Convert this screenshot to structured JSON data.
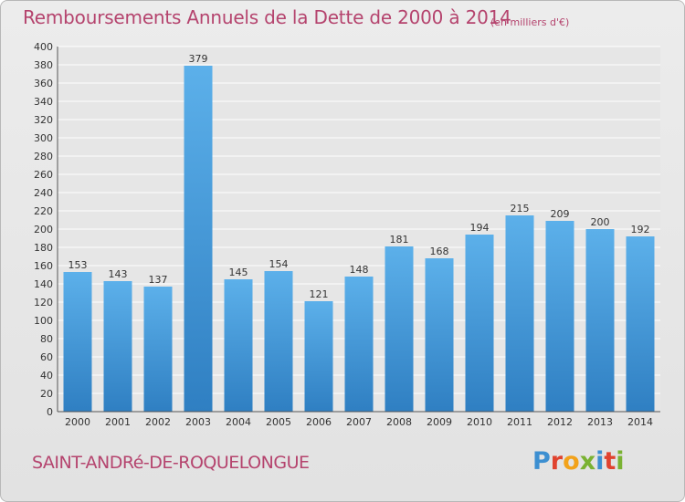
{
  "header": {
    "title": "Remboursements Annuels de la Dette de 2000 à 2014",
    "unit": "(en milliers d'€)"
  },
  "footer": {
    "town": "SAINT-ANDRé-DE-ROQUELONGUE",
    "logo_letters": [
      "P",
      "r",
      "o",
      "x",
      "i",
      "t",
      "i"
    ],
    "logo_colors": [
      "#3c8fd1",
      "#e0432f",
      "#f2a21a",
      "#7ab232",
      "#3c8fd1",
      "#e0432f",
      "#7ab232"
    ]
  },
  "chart_data": {
    "type": "bar",
    "title": "Remboursements Annuels de la Dette de 2000 à 2014",
    "categories": [
      "2000",
      "2001",
      "2002",
      "2003",
      "2004",
      "2005",
      "2006",
      "2007",
      "2008",
      "2009",
      "2010",
      "2011",
      "2012",
      "2013",
      "2014"
    ],
    "values": [
      153,
      143,
      137,
      379,
      145,
      154,
      121,
      148,
      181,
      168,
      194,
      215,
      209,
      200,
      192
    ],
    "ylim": [
      0,
      400
    ],
    "ytick_step": 20,
    "grid": true,
    "bar_color": "#4f9fdc"
  }
}
